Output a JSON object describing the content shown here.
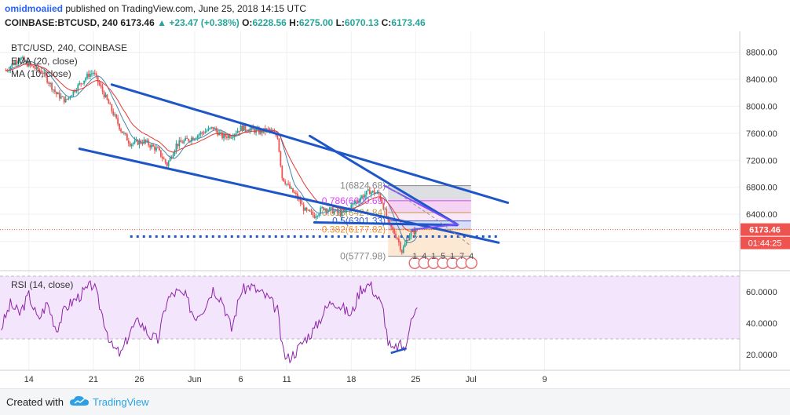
{
  "header": {
    "author": "omidmoaiied",
    "published": "published on TradingView.com, June 25, 2018 14:15 UTC",
    "symbol": "COINBASE:BTCUSD, 240",
    "last": "6173.46",
    "change_arrow": "▲",
    "change": "+23.47 (+0.38%)",
    "o_label": "O:",
    "o": "6228.56",
    "h_label": "H:",
    "h": "6275.00",
    "l_label": "L:",
    "l": "6070.13",
    "c_label": "C:",
    "c": "6173.46"
  },
  "footer": {
    "made_with": "Created with",
    "brand": "TradingView"
  },
  "colors": {
    "up": "#26a69a",
    "down": "#ef5350",
    "trend": "#1e56c8",
    "ema": "#e53935",
    "ma": "#4a86a8",
    "rsi": "#8e24aa",
    "price_tag": "#ef5350"
  },
  "chart_data": [
    {
      "type": "candlestick",
      "title": "BTC/USD, 240, COINBASE",
      "indicators": [
        "EMA (20, close)",
        "MA (10, close)"
      ],
      "y_range": [
        5600,
        9050
      ],
      "y_ticks": [
        "8800.00",
        "8400.00",
        "8000.00",
        "7600.00",
        "7200.00",
        "6800.00",
        "6400.00",
        "6000.00"
      ],
      "y_tick_values": [
        8800,
        8400,
        8000,
        7600,
        7200,
        6800,
        6400,
        6000
      ],
      "x_ticks": [
        "14",
        "21",
        "26",
        "Jun",
        "6",
        "11",
        "18",
        "25",
        "Jul",
        "9"
      ],
      "x_tick_days": [
        -17,
        -10,
        -5,
        1,
        6,
        11,
        18,
        25,
        31,
        39
      ],
      "current_price_label": "6173.46",
      "countdown_label": "01:44:25",
      "current_price": 6173.46,
      "price_waypoints": [
        {
          "day": -19.5,
          "price": 8530
        },
        {
          "day": -18.0,
          "price": 8720
        },
        {
          "day": -17.0,
          "price": 8610
        },
        {
          "day": -15.5,
          "price": 8500
        },
        {
          "day": -14.0,
          "price": 8180
        },
        {
          "day": -13.0,
          "price": 8080
        },
        {
          "day": -12.0,
          "price": 8250
        },
        {
          "day": -10.5,
          "price": 8470
        },
        {
          "day": -10.0,
          "price": 8500
        },
        {
          "day": -8.5,
          "price": 8080
        },
        {
          "day": -7.0,
          "price": 7650
        },
        {
          "day": -6.0,
          "price": 7450
        },
        {
          "day": -4.5,
          "price": 7480
        },
        {
          "day": -3.0,
          "price": 7350
        },
        {
          "day": -2.0,
          "price": 7130
        },
        {
          "day": -1.0,
          "price": 7430
        },
        {
          "day": 0.5,
          "price": 7520
        },
        {
          "day": 2.0,
          "price": 7620
        },
        {
          "day": 3.0,
          "price": 7680
        },
        {
          "day": 4.0,
          "price": 7550
        },
        {
          "day": 5.0,
          "price": 7570
        },
        {
          "day": 6.0,
          "price": 7680
        },
        {
          "day": 7.0,
          "price": 7660
        },
        {
          "day": 8.0,
          "price": 7620
        },
        {
          "day": 9.0,
          "price": 7650
        },
        {
          "day": 10.0,
          "price": 7550
        },
        {
          "day": 10.5,
          "price": 6950
        },
        {
          "day": 11.5,
          "price": 6750
        },
        {
          "day": 12.0,
          "price": 6680
        },
        {
          "day": 13.0,
          "price": 6450
        },
        {
          "day": 14.0,
          "price": 6380
        },
        {
          "day": 15.0,
          "price": 6500
        },
        {
          "day": 16.0,
          "price": 6450
        },
        {
          "day": 17.0,
          "price": 6400
        },
        {
          "day": 18.0,
          "price": 6520
        },
        {
          "day": 19.0,
          "price": 6650
        },
        {
          "day": 20.0,
          "price": 6740
        },
        {
          "day": 21.0,
          "price": 6700
        },
        {
          "day": 21.5,
          "price": 6520
        },
        {
          "day": 22.0,
          "price": 6270
        },
        {
          "day": 23.0,
          "price": 6050
        },
        {
          "day": 23.5,
          "price": 5850
        },
        {
          "day": 24.3,
          "price": 6100
        },
        {
          "day": 25.2,
          "price": 6173
        }
      ],
      "trend_lines": [
        {
          "from": {
            "day": -8.0,
            "price": 8320
          },
          "to": {
            "day": 35.0,
            "price": 6570
          }
        },
        {
          "from": {
            "day": -11.5,
            "price": 7370
          },
          "to": {
            "day": 34.0,
            "price": 5980
          }
        },
        {
          "from": {
            "day": 13.5,
            "price": 7560
          },
          "to": {
            "day": 29.5,
            "price": 6250
          }
        },
        {
          "from": {
            "day": 14.0,
            "price": 6280
          },
          "to": {
            "day": 29.5,
            "price": 6240
          }
        }
      ],
      "support_level": {
        "price": 6070,
        "from_day": -6.0,
        "to_day": 34.0
      },
      "fibonacci": {
        "from_day": 22.0,
        "to_day": 31.0,
        "levels": [
          {
            "ratio": "1",
            "price": 6824.68,
            "label": "1(6824.68)"
          },
          {
            "ratio": "0.786",
            "price": 6600.69,
            "label": "0.786(6600.69)"
          },
          {
            "ratio": "0.618",
            "price": 6424.84,
            "label": "0.618(6424.84)"
          },
          {
            "ratio": "0.5",
            "price": 6301.33,
            "label": "0.5(6301.33)"
          },
          {
            "ratio": "0.382",
            "price": 6177.82,
            "label": "0.382(6177.82)"
          },
          {
            "ratio": "0",
            "price": 5777.98,
            "label": "0(5777.98)"
          }
        ]
      },
      "wave_labels": [
        "1",
        "4",
        "1",
        "5",
        "1",
        "7",
        "4"
      ]
    },
    {
      "type": "line",
      "title": "RSI (14, close)",
      "y_range": [
        10,
        72
      ],
      "band": [
        30,
        70
      ],
      "y_ticks": [
        "60.0000",
        "40.0000",
        "20.0000"
      ],
      "y_tick_values": [
        60,
        40,
        20
      ],
      "rsi_waypoints": [
        {
          "day": -20,
          "value": 37
        },
        {
          "day": -19,
          "value": 52
        },
        {
          "day": -18,
          "value": 46
        },
        {
          "day": -17,
          "value": 58
        },
        {
          "day": -16,
          "value": 42
        },
        {
          "day": -15,
          "value": 53
        },
        {
          "day": -14,
          "value": 36
        },
        {
          "day": -13,
          "value": 50
        },
        {
          "day": -12,
          "value": 55
        },
        {
          "day": -11,
          "value": 60
        },
        {
          "day": -10,
          "value": 65
        },
        {
          "day": -9,
          "value": 45
        },
        {
          "day": -8,
          "value": 25
        },
        {
          "day": -7,
          "value": 20
        },
        {
          "day": -6,
          "value": 35
        },
        {
          "day": -5,
          "value": 42
        },
        {
          "day": -4,
          "value": 33
        },
        {
          "day": -3,
          "value": 29
        },
        {
          "day": -2,
          "value": 55
        },
        {
          "day": -1,
          "value": 60
        },
        {
          "day": 0,
          "value": 57
        },
        {
          "day": 1,
          "value": 44
        },
        {
          "day": 2,
          "value": 50
        },
        {
          "day": 3,
          "value": 62
        },
        {
          "day": 4,
          "value": 55
        },
        {
          "day": 5,
          "value": 36
        },
        {
          "day": 6,
          "value": 60
        },
        {
          "day": 7,
          "value": 64
        },
        {
          "day": 8,
          "value": 60
        },
        {
          "day": 9,
          "value": 56
        },
        {
          "day": 10,
          "value": 48
        },
        {
          "day": 10.5,
          "value": 24
        },
        {
          "day": 11,
          "value": 17
        },
        {
          "day": 12,
          "value": 22
        },
        {
          "day": 13,
          "value": 30
        },
        {
          "day": 14,
          "value": 36
        },
        {
          "day": 15,
          "value": 47
        },
        {
          "day": 16,
          "value": 55
        },
        {
          "day": 17,
          "value": 50
        },
        {
          "day": 18,
          "value": 45
        },
        {
          "day": 19,
          "value": 62
        },
        {
          "day": 20,
          "value": 65
        },
        {
          "day": 21,
          "value": 55
        },
        {
          "day": 21.5,
          "value": 48
        },
        {
          "day": 22,
          "value": 28
        },
        {
          "day": 22.5,
          "value": 22
        },
        {
          "day": 23.2,
          "value": 26
        },
        {
          "day": 24,
          "value": 24
        },
        {
          "day": 24.5,
          "value": 46
        },
        {
          "day": 25.2,
          "value": 49
        }
      ],
      "divergence_line": {
        "from": {
          "day": 22.3,
          "value": 21
        },
        "to": {
          "day": 24.0,
          "value": 24
        }
      }
    }
  ]
}
